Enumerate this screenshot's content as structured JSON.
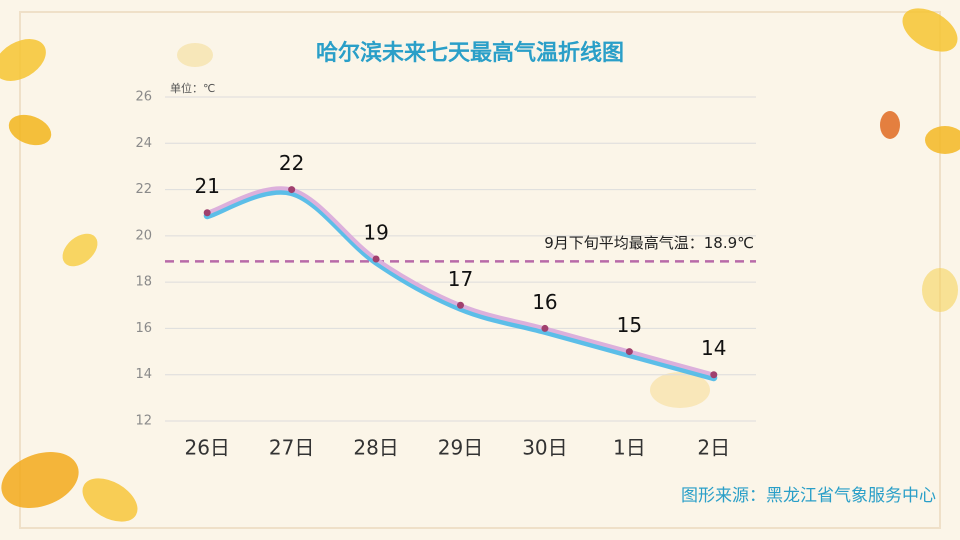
{
  "chart_data": {
    "type": "line",
    "title": "哈尔滨未来七天最高气温折线图",
    "y_unit_label": "单位：℃",
    "categories": [
      "26日",
      "27日",
      "28日",
      "29日",
      "30日",
      "1日",
      "2日"
    ],
    "series": [
      {
        "name": "最高气温",
        "color": "#4ab8e8",
        "values": [
          21,
          22,
          19,
          17,
          16,
          15,
          14
        ]
      }
    ],
    "ylim": [
      12,
      26
    ],
    "yticks": [
      12,
      14,
      16,
      18,
      20,
      22,
      24,
      26
    ],
    "grid": true,
    "reference_line": {
      "value": 18.9,
      "label": "9月下旬平均最高气温：18.9℃",
      "color": "#b86aa8"
    },
    "source": "图形来源：黑龙江省气象服务中心"
  }
}
